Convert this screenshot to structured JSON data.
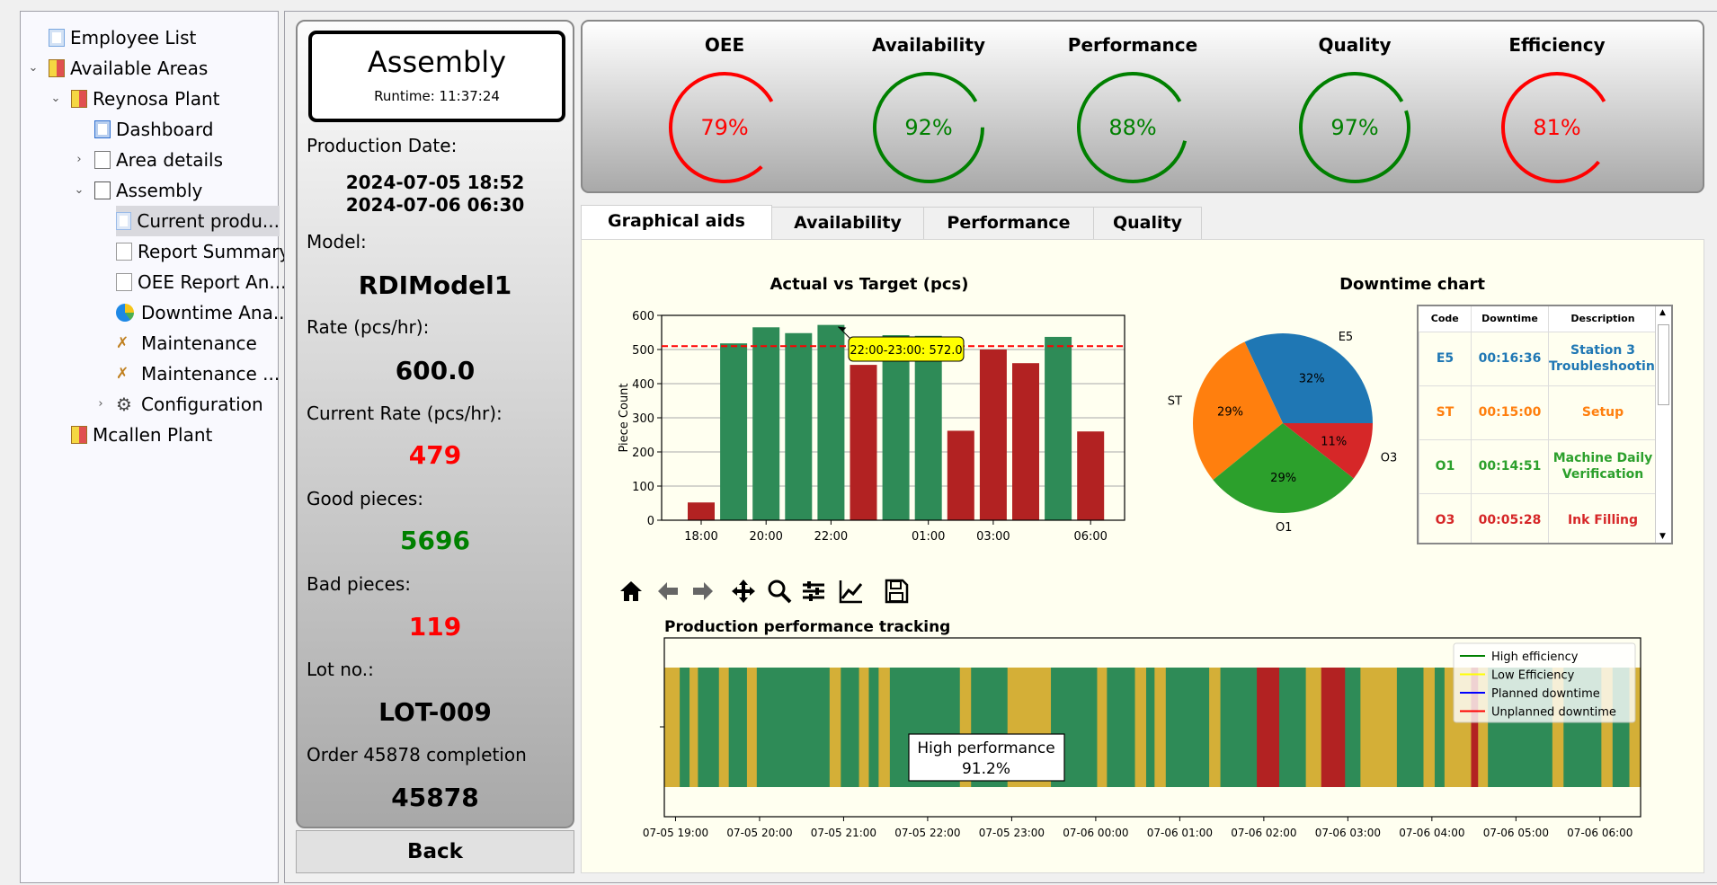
{
  "sidebar": {
    "items": [
      {
        "label": "Employee List",
        "icon": "employee-list-icon"
      },
      {
        "label": "Available Areas",
        "icon": "areas-icon",
        "expanded": true
      },
      {
        "label": "Reynosa Plant",
        "icon": "plant-icon",
        "expanded": true
      },
      {
        "label": "Dashboard",
        "icon": "dashboard-icon"
      },
      {
        "label": "Area details",
        "icon": "area-details-icon",
        "collapsed": true
      },
      {
        "label": "Assembly",
        "icon": "assembly-icon",
        "expanded": true
      },
      {
        "label": "Current produ...",
        "icon": "chart-icon",
        "selected": true
      },
      {
        "label": "Report Summary",
        "icon": "report-icon"
      },
      {
        "label": "OEE Report An...",
        "icon": "report-icon"
      },
      {
        "label": "Downtime Ana...",
        "icon": "pie-icon"
      },
      {
        "label": "Maintenance",
        "icon": "wrench-icon"
      },
      {
        "label": "Maintenance ...",
        "icon": "wrench-icon"
      },
      {
        "label": "Configuration",
        "icon": "gear-icon",
        "collapsed": true
      },
      {
        "label": "Mcallen Plant",
        "icon": "plant-icon"
      }
    ]
  },
  "info": {
    "area": "Assembly",
    "runtime": "Runtime: 11:37:24",
    "production_date_label": "Production Date:",
    "date_start": "2024-07-05 18:52",
    "date_end": "2024-07-06 06:30",
    "model_label": "Model:",
    "model": "RDIModel1",
    "rate_label": "Rate (pcs/hr):",
    "rate": "600.0",
    "current_rate_label": "Current Rate (pcs/hr):",
    "current_rate": "479",
    "good_label": "Good pieces:",
    "good": "5696",
    "bad_label": "Bad pieces:",
    "bad": "119",
    "lot_label": "Lot no.:",
    "lot": "LOT-009",
    "order_label": "Order 45878 completion",
    "order": "45878",
    "back": "Back",
    "colors": {
      "bad": "#ff0000",
      "good": "#008000"
    }
  },
  "kpis": [
    {
      "title": "OEE",
      "value": 79,
      "label": "79%",
      "color": "#ff0000"
    },
    {
      "title": "Availability",
      "value": 92,
      "label": "92%",
      "color": "#008000"
    },
    {
      "title": "Performance",
      "value": 88,
      "label": "88%",
      "color": "#008000"
    },
    {
      "title": "Quality",
      "value": 97,
      "label": "97%",
      "color": "#008000"
    },
    {
      "title": "Efficiency",
      "value": 81,
      "label": "81%",
      "color": "#ff0000"
    }
  ],
  "tabs": [
    "Graphical aids",
    "Availability",
    "Performance",
    "Quality"
  ],
  "chart_data": [
    {
      "type": "bar",
      "title": "Actual vs Target (pcs)",
      "ylabel": "Piece Count",
      "xlabel": "",
      "ylim": [
        0,
        600
      ],
      "yticks": [
        0,
        100,
        200,
        300,
        400,
        500,
        600
      ],
      "values": [
        52,
        518,
        565,
        548,
        572,
        455,
        542,
        540,
        262,
        500,
        460,
        537,
        260
      ],
      "tick_labels": {
        "0": "18:00",
        "2": "20:00",
        "4": "22:00",
        "7": "01:00",
        "9": "03:00",
        "12": "06:00"
      },
      "target": 510,
      "above_color": "#2e8b57",
      "below_color": "#b22222",
      "annotation": {
        "index": 4,
        "text": "22:00-23:00: 572.0"
      }
    },
    {
      "type": "pie",
      "title": "Downtime chart",
      "slices": [
        {
          "label": "E5",
          "value": 996,
          "pct": "32%",
          "color": "#1f77b4"
        },
        {
          "label": "ST",
          "value": 900,
          "pct": "29%",
          "color": "#ff7f0e"
        },
        {
          "label": "O1",
          "value": 891,
          "pct": "29%",
          "color": "#2ca02c"
        },
        {
          "label": "O3",
          "value": 328,
          "pct": "11%",
          "color": "#d62728"
        }
      ]
    },
    {
      "type": "table",
      "headers": [
        "Code",
        "Downtime",
        "Description"
      ],
      "rows": [
        {
          "code": "E5",
          "downtime": "00:16:36",
          "description": "Station 3 Troubleshooting",
          "color": "#1f77b4"
        },
        {
          "code": "ST",
          "downtime": "00:15:00",
          "description": "Setup",
          "color": "#ff7f0e"
        },
        {
          "code": "O1",
          "downtime": "00:14:51",
          "description": "Machine Daily Verification",
          "color": "#2ca02c"
        },
        {
          "code": "O3",
          "downtime": "00:05:28",
          "description": "Ink Filling",
          "color": "#d62728"
        }
      ]
    },
    {
      "type": "timeline",
      "title": "Production performance tracking",
      "start": "07-05 18:52",
      "range_min": [
        0,
        697
      ],
      "xticks": [
        {
          "min": 8,
          "label": "07-05 19:00"
        },
        {
          "min": 68,
          "label": "07-05 20:00"
        },
        {
          "min": 128,
          "label": "07-05 21:00"
        },
        {
          "min": 188,
          "label": "07-05 22:00"
        },
        {
          "min": 248,
          "label": "07-05 23:00"
        },
        {
          "min": 308,
          "label": "07-06 00:00"
        },
        {
          "min": 368,
          "label": "07-06 01:00"
        },
        {
          "min": 428,
          "label": "07-06 02:00"
        },
        {
          "min": 488,
          "label": "07-06 03:00"
        },
        {
          "min": 548,
          "label": "07-06 04:00"
        },
        {
          "min": 608,
          "label": "07-06 05:00"
        },
        {
          "min": 668,
          "label": "07-06 06:00"
        }
      ],
      "state_colors": {
        "H": "#2e8b57",
        "L": "#d4af37",
        "U": "#b22222"
      },
      "segments": [
        [
          "L",
          0,
          11
        ],
        [
          "H",
          11,
          18
        ],
        [
          "L",
          18,
          24
        ],
        [
          "H",
          24,
          39
        ],
        [
          "L",
          39,
          46
        ],
        [
          "H",
          46,
          59
        ],
        [
          "L",
          59,
          66
        ],
        [
          "H",
          66,
          118
        ],
        [
          "L",
          118,
          126
        ],
        [
          "H",
          126,
          139
        ],
        [
          "L",
          139,
          146
        ],
        [
          "H",
          146,
          153
        ],
        [
          "L",
          153,
          161
        ],
        [
          "H",
          161,
          211
        ],
        [
          "L",
          211,
          219
        ],
        [
          "H",
          219,
          245
        ],
        [
          "L",
          245,
          276
        ],
        [
          "H",
          276,
          309
        ],
        [
          "L",
          309,
          316
        ],
        [
          "H",
          316,
          336
        ],
        [
          "L",
          336,
          344
        ],
        [
          "H",
          344,
          350
        ],
        [
          "L",
          350,
          358
        ],
        [
          "H",
          358,
          389
        ],
        [
          "L",
          389,
          397
        ],
        [
          "H",
          397,
          423
        ],
        [
          "U",
          423,
          439
        ],
        [
          "H",
          439,
          458
        ],
        [
          "L",
          458,
          469
        ],
        [
          "U",
          469,
          486
        ],
        [
          "H",
          486,
          497
        ],
        [
          "L",
          497,
          523
        ],
        [
          "H",
          523,
          542
        ],
        [
          "L",
          542,
          550
        ],
        [
          "H",
          550,
          557
        ],
        [
          "L",
          557,
          576
        ],
        [
          "U",
          576,
          581
        ],
        [
          "L",
          581,
          588
        ],
        [
          "H",
          588,
          634
        ],
        [
          "L",
          634,
          642
        ],
        [
          "H",
          642,
          669
        ],
        [
          "L",
          669,
          677
        ],
        [
          "H",
          677,
          689
        ],
        [
          "L",
          689,
          697
        ]
      ],
      "legend": [
        {
          "label": "High efficiency",
          "color": "#008000"
        },
        {
          "label": "Low Efficiency",
          "color": "#ffff00"
        },
        {
          "label": "Planned downtime",
          "color": "#0000ff"
        },
        {
          "label": "Unplanned downtime",
          "color": "#ff0000"
        }
      ],
      "annotation": {
        "line1": "High performance",
        "line2": "91.2%"
      }
    }
  ],
  "toolbar": [
    "home-icon",
    "back-arrow-icon",
    "forward-arrow-icon",
    "pan-icon",
    "zoom-icon",
    "subplots-icon",
    "axes-icon",
    "save-icon"
  ]
}
